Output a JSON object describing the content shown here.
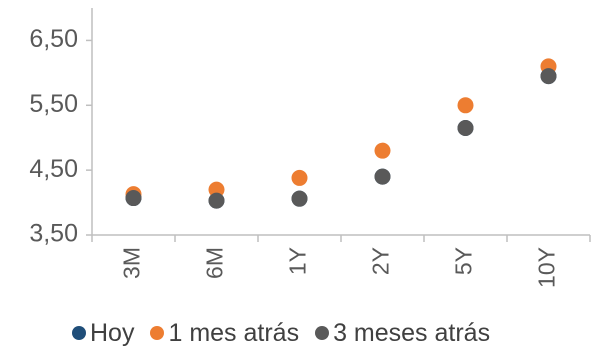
{
  "chart_data": {
    "type": "scatter",
    "title": "",
    "xlabel": "",
    "ylabel": "",
    "categories": [
      "3M",
      "6M",
      "1Y",
      "2Y",
      "5Y",
      "10Y"
    ],
    "ylim": [
      3.5,
      7.0
    ],
    "yticks": [
      3.5,
      4.5,
      5.5,
      6.5
    ],
    "ytick_labels": [
      "3,50",
      "4,50",
      "5,50",
      "6,50"
    ],
    "grid": false,
    "legend_position": "bottom",
    "series": [
      {
        "name": "Hoy",
        "color": "#1f4e79",
        "values": [
          4.07,
          4.03,
          4.06,
          4.4,
          5.15,
          5.95
        ]
      },
      {
        "name": "1 mes atrás",
        "color": "#ed7d31",
        "values": [
          4.13,
          4.2,
          4.38,
          4.8,
          5.5,
          6.1
        ]
      },
      {
        "name": "3 meses atrás",
        "color": "#595959",
        "values": [
          4.07,
          4.03,
          4.06,
          4.4,
          5.15,
          5.95
        ]
      }
    ]
  }
}
